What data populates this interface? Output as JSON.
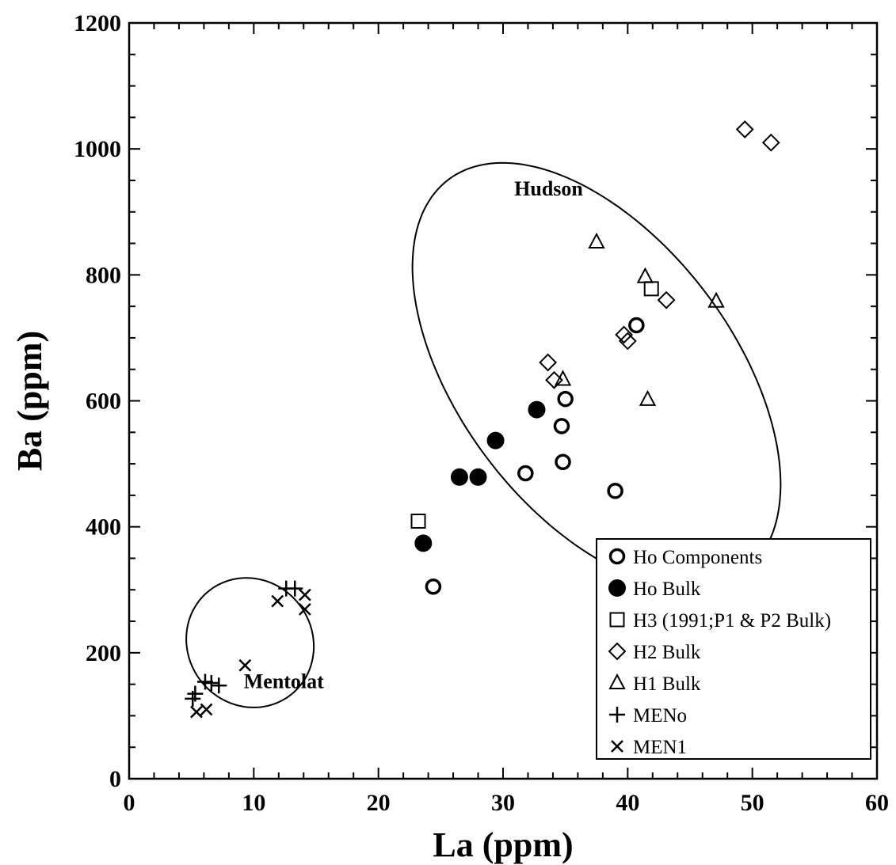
{
  "chart_data": {
    "type": "scatter",
    "title": "",
    "xlabel": "La (ppm)",
    "ylabel": "Ba (ppm)",
    "xlim": [
      0,
      60
    ],
    "ylim": [
      0,
      1200
    ],
    "x_ticks": [
      0,
      10,
      20,
      30,
      40,
      50,
      60
    ],
    "y_ticks": [
      0,
      200,
      400,
      600,
      800,
      1000,
      1200
    ],
    "grid": false,
    "legend_position": "bottom-right",
    "series": [
      {
        "name": "Ho Components",
        "marker": "open-circle",
        "points": [
          [
            24.4,
            305
          ],
          [
            31.8,
            485
          ],
          [
            34.7,
            560
          ],
          [
            34.8,
            503
          ],
          [
            35.0,
            603
          ],
          [
            39.0,
            457
          ],
          [
            40.7,
            720
          ]
        ]
      },
      {
        "name": "Ho Bulk",
        "marker": "filled-circle",
        "points": [
          [
            23.6,
            374
          ],
          [
            26.5,
            479
          ],
          [
            28.0,
            479
          ],
          [
            29.4,
            537
          ],
          [
            32.7,
            586
          ]
        ]
      },
      {
        "name": "H3 (1991;P1 & P2 Bulk)",
        "marker": "open-square",
        "points": [
          [
            23.2,
            409
          ],
          [
            41.9,
            778
          ]
        ]
      },
      {
        "name": "H2 Bulk",
        "marker": "open-diamond",
        "points": [
          [
            33.6,
            661
          ],
          [
            34.1,
            633
          ],
          [
            39.7,
            705
          ],
          [
            40.0,
            695
          ],
          [
            43.1,
            760
          ],
          [
            49.4,
            1031
          ],
          [
            51.5,
            1010
          ]
        ]
      },
      {
        "name": "H1 Bulk",
        "marker": "open-triangle",
        "points": [
          [
            34.8,
            634
          ],
          [
            37.5,
            852
          ],
          [
            41.4,
            797
          ],
          [
            41.6,
            602
          ],
          [
            47.1,
            758
          ]
        ]
      },
      {
        "name": "MENo",
        "marker": "plus",
        "points": [
          [
            5.1,
            127
          ],
          [
            5.3,
            135
          ],
          [
            6.1,
            154
          ],
          [
            6.6,
            152
          ],
          [
            7.2,
            148
          ],
          [
            12.6,
            302
          ],
          [
            13.3,
            302
          ]
        ]
      },
      {
        "name": "MEN1",
        "marker": "cross",
        "points": [
          [
            5.4,
            106
          ],
          [
            6.2,
            110
          ],
          [
            9.3,
            180
          ],
          [
            11.9,
            282
          ],
          [
            14.1,
            292
          ],
          [
            14.1,
            269
          ]
        ]
      }
    ],
    "annotations": [
      {
        "text": "Hudson",
        "x": 30.9,
        "y": 926
      },
      {
        "text": "Mentolat",
        "x": 9.2,
        "y": 144
      }
    ],
    "ellipses": [
      {
        "name": "Hudson",
        "center": [
          37.5,
          640
        ],
        "semi_axes": [
          11.0,
          390
        ],
        "rotation_deg": 37
      },
      {
        "name": "Mentolat",
        "center": [
          9.7,
          216
        ],
        "semi_axes": [
          5.0,
          105
        ],
        "rotation_deg": 37
      }
    ]
  }
}
